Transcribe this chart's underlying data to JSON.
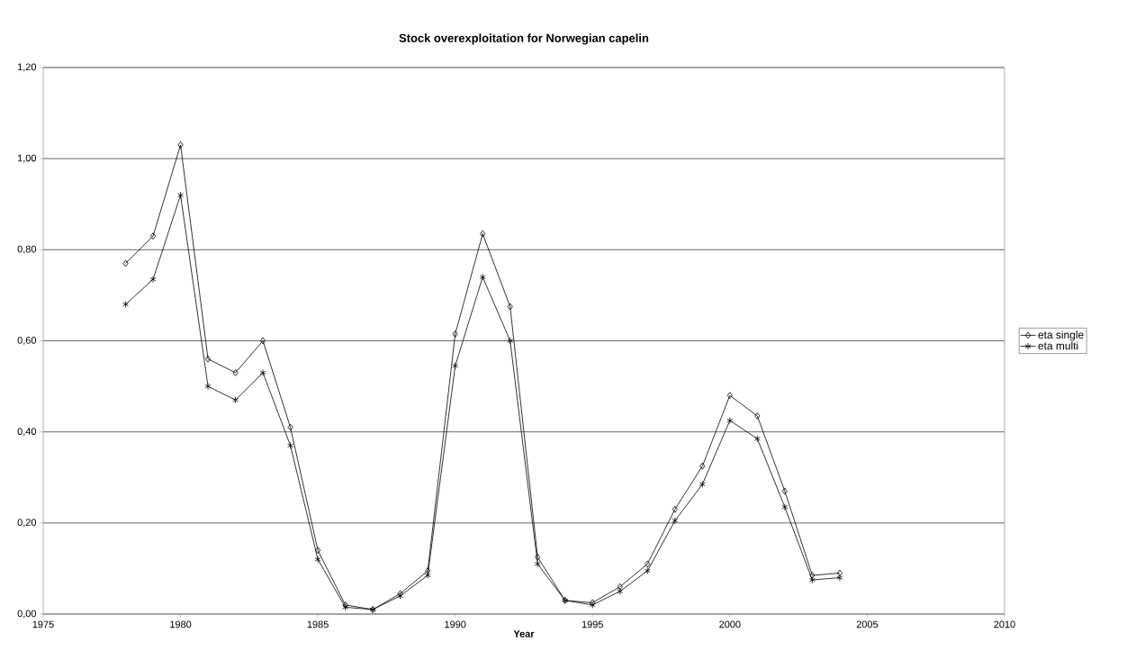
{
  "chart_data": {
    "type": "line",
    "title": "Stock overexploitation for Norwegian capelin",
    "xlabel": "Year",
    "x": [
      1978,
      1979,
      1980,
      1981,
      1982,
      1983,
      1984,
      1985,
      1986,
      1987,
      1988,
      1989,
      1990,
      1991,
      1992,
      1993,
      1994,
      1995,
      1996,
      1997,
      1998,
      1999,
      2000,
      2001,
      2002,
      2003,
      2004
    ],
    "series": [
      {
        "name": "eta single",
        "color": "#000000",
        "marker": "diamond",
        "values": [
          0.77,
          0.83,
          1.03,
          0.56,
          0.53,
          0.6,
          0.41,
          0.14,
          0.02,
          0.01,
          0.045,
          0.095,
          0.615,
          0.835,
          0.675,
          0.125,
          0.03,
          0.025,
          0.06,
          0.11,
          0.23,
          0.325,
          0.48,
          0.435,
          0.27,
          0.085,
          0.09
        ]
      },
      {
        "name": "eta multi",
        "color": "#000000",
        "marker": "cross",
        "values": [
          0.68,
          0.735,
          0.92,
          0.5,
          0.47,
          0.53,
          0.37,
          0.12,
          0.015,
          0.01,
          0.04,
          0.085,
          0.545,
          0.74,
          0.6,
          0.11,
          0.03,
          0.02,
          0.05,
          0.095,
          0.205,
          0.285,
          0.425,
          0.385,
          0.235,
          0.075,
          0.08
        ]
      }
    ],
    "xlim": [
      1975,
      2010
    ],
    "xticks": [
      1975,
      1980,
      1985,
      1990,
      1995,
      2000,
      2005,
      2010
    ],
    "ylim": [
      0,
      1.2
    ],
    "yticks": [
      {
        "value": 0,
        "label": "0,00"
      },
      {
        "value": 0.2,
        "label": "0,20"
      },
      {
        "value": 0.4,
        "label": "0,40"
      },
      {
        "value": 0.6,
        "label": "0,60"
      },
      {
        "value": 0.8,
        "label": "0,80"
      },
      {
        "value": 1.0,
        "label": "1,00"
      },
      {
        "value": 1.2,
        "label": "1,20"
      }
    ],
    "grid": "y",
    "legend": "right",
    "line_style": "solid"
  }
}
